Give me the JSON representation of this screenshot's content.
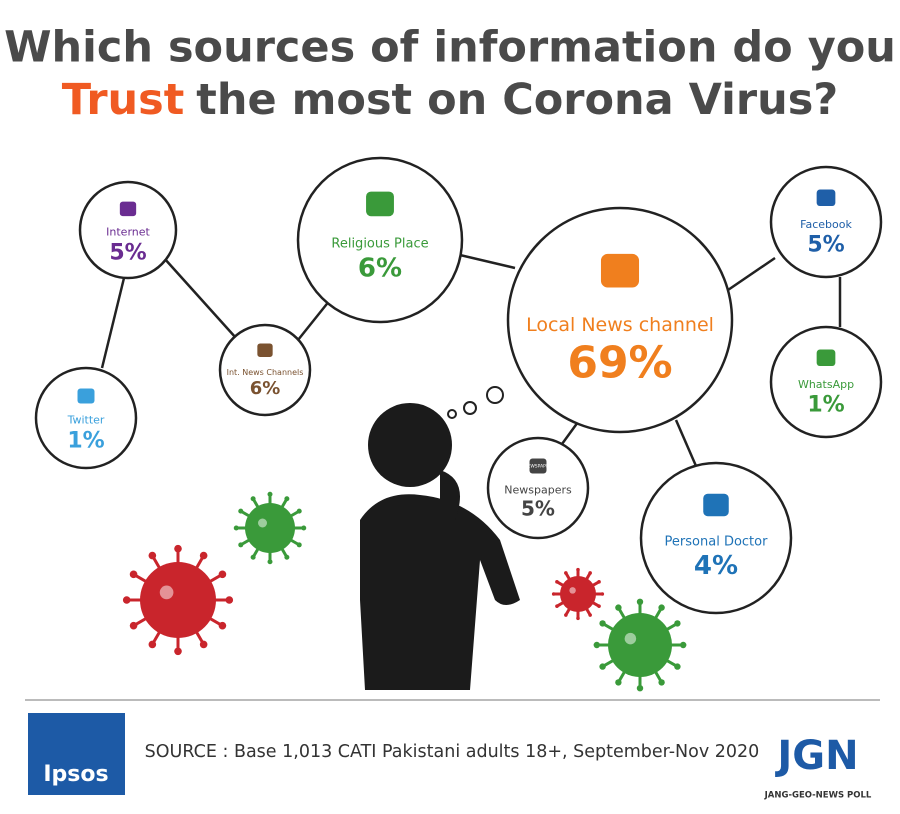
{
  "title": {
    "line1": "Which sources of information do you",
    "highlight": "Trust",
    "line2_rest": "the most on Corona Virus?"
  },
  "nodes": [
    {
      "label": "Internet",
      "value": "5%"
    },
    {
      "label": "Twitter",
      "value": "1%"
    },
    {
      "label": "Int. News Channels",
      "value": "6%"
    },
    {
      "label": "Religious Place",
      "value": "6%"
    },
    {
      "label": "Local News channel",
      "value": "69%"
    },
    {
      "label": "Facebook",
      "value": "5%"
    },
    {
      "label": "WhatsApp",
      "value": "1%"
    },
    {
      "label": "Newspapers",
      "value": "5%",
      "icon_text": "NEWSPAPER"
    },
    {
      "label": "Personal Doctor",
      "value": "4%"
    }
  ],
  "footer": {
    "source": "SOURCE : Base 1,013 CATI Pakistani adults 18+, September-Nov 2020",
    "left_logo": "Ipsos",
    "right_logo": "JGN",
    "right_logo_caption": "JANG-GEO-NEWS POLL"
  }
}
